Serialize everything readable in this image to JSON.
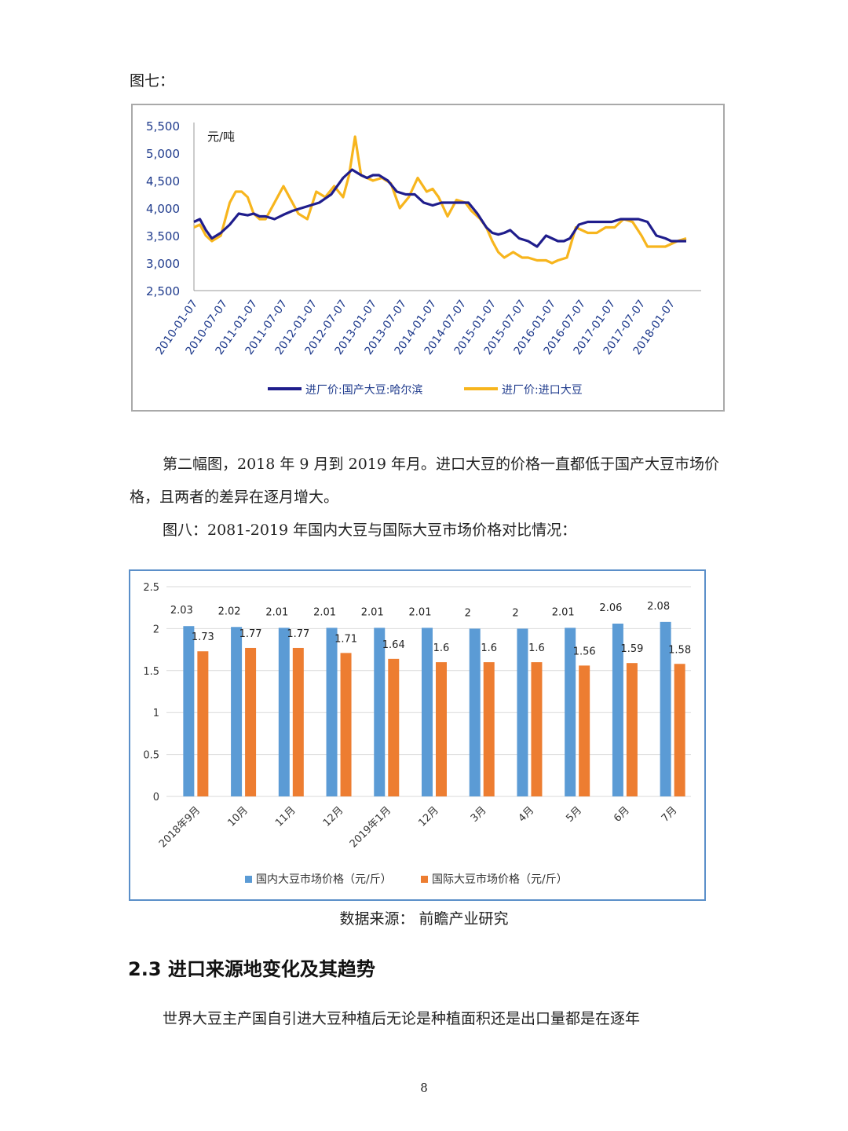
{
  "doc": {
    "fig7_label": "图七：",
    "paragraph1": "第二幅图，2018 年 9 月到 2019 年月。进口大豆的价格一直都低于国产大豆市场价格，且两者的差异在逐月增大。",
    "fig8_caption": "图八：2081-2019 年国内大豆与国际大豆市场价格对比情况：",
    "source": "数据来源：  前瞻产业研究",
    "section_heading": "2.3  进口来源地变化及其趋势",
    "paragraph3": "世界大豆主产国自引进大豆种植后无论是种植面积还是出口量都是在逐年",
    "page_number": "8"
  },
  "chart_data": [
    {
      "type": "line",
      "unit_label": "元/吨",
      "ylim": [
        2500,
        5500
      ],
      "y_ticks": [
        "5,500",
        "5,000",
        "4,500",
        "4,000",
        "3,500",
        "3,000",
        "2,500"
      ],
      "x_ticks": [
        "2010-01-07",
        "2010-07-07",
        "2011-01-07",
        "2011-07-07",
        "2012-01-07",
        "2012-07-07",
        "2013-01-07",
        "2013-07-07",
        "2014-01-07",
        "2014-07-07",
        "2015-01-07",
        "2015-07-07",
        "2016-01-07",
        "2016-07-07",
        "2017-01-07",
        "2017-07-07",
        "2018-01-07"
      ],
      "grid": false,
      "legend_position": "bottom",
      "colors": {
        "domestic": "#1f1d8c",
        "imported": "#f7b51d"
      },
      "series": [
        {
          "name": "进厂价:国产大豆:哈尔滨",
          "x": [
            2010.0,
            2010.1,
            2010.2,
            2010.3,
            2010.45,
            2010.6,
            2010.75,
            2010.9,
            2011.0,
            2011.1,
            2011.2,
            2011.35,
            2011.5,
            2011.65,
            2011.8,
            2011.95,
            2012.1,
            2012.3,
            2012.5,
            2012.65,
            2012.8,
            2012.9,
            2013.0,
            2013.1,
            2013.25,
            2013.4,
            2013.55,
            2013.7,
            2013.85,
            2014.0,
            2014.15,
            2014.3,
            2014.45,
            2014.6,
            2014.75,
            2014.9,
            2015.0,
            2015.1,
            2015.2,
            2015.3,
            2015.45,
            2015.6,
            2015.75,
            2015.9,
            2016.0,
            2016.1,
            2016.2,
            2016.3,
            2016.45,
            2016.6,
            2016.75,
            2016.9,
            2017.0,
            2017.15,
            2017.3,
            2017.45,
            2017.6,
            2017.75,
            2017.9,
            2018.0,
            2018.1,
            2018.25
          ],
          "values": [
            3750,
            3800,
            3600,
            3450,
            3550,
            3700,
            3900,
            3870,
            3900,
            3850,
            3850,
            3800,
            3880,
            3950,
            4000,
            4050,
            4100,
            4250,
            4550,
            4700,
            4600,
            4550,
            4600,
            4600,
            4500,
            4300,
            4250,
            4250,
            4100,
            4050,
            4100,
            4100,
            4100,
            4100,
            3900,
            3650,
            3550,
            3520,
            3550,
            3600,
            3450,
            3400,
            3300,
            3500,
            3450,
            3400,
            3400,
            3450,
            3700,
            3750,
            3750,
            3750,
            3750,
            3800,
            3800,
            3800,
            3750,
            3500,
            3450,
            3400,
            3400,
            3400
          ]
        },
        {
          "name": "进厂价:进口大豆",
          "x": [
            2010.0,
            2010.1,
            2010.2,
            2010.3,
            2010.45,
            2010.6,
            2010.7,
            2010.8,
            2010.9,
            2011.0,
            2011.1,
            2011.2,
            2011.35,
            2011.5,
            2011.6,
            2011.75,
            2011.9,
            2012.05,
            2012.2,
            2012.35,
            2012.5,
            2012.6,
            2012.65,
            2012.7,
            2012.8,
            2012.9,
            2013.0,
            2013.15,
            2013.3,
            2013.45,
            2013.6,
            2013.75,
            2013.9,
            2014.0,
            2014.1,
            2014.25,
            2014.4,
            2014.55,
            2014.65,
            2014.8,
            2014.9,
            2015.0,
            2015.1,
            2015.2,
            2015.35,
            2015.5,
            2015.6,
            2015.75,
            2015.9,
            2016.0,
            2016.1,
            2016.25,
            2016.4,
            2016.5,
            2016.6,
            2016.75,
            2016.9,
            2017.05,
            2017.2,
            2017.35,
            2017.5,
            2017.6,
            2017.75,
            2017.9,
            2018.0,
            2018.1,
            2018.25
          ],
          "values": [
            3650,
            3700,
            3500,
            3400,
            3500,
            4100,
            4300,
            4300,
            4200,
            3900,
            3800,
            3800,
            4100,
            4400,
            4200,
            3900,
            3800,
            4300,
            4200,
            4400,
            4200,
            4600,
            4950,
            5300,
            4600,
            4550,
            4500,
            4550,
            4450,
            4000,
            4200,
            4550,
            4300,
            4350,
            4200,
            3850,
            4150,
            4100,
            3950,
            3800,
            3650,
            3400,
            3200,
            3100,
            3200,
            3100,
            3100,
            3050,
            3050,
            3000,
            3050,
            3100,
            3650,
            3600,
            3550,
            3550,
            3650,
            3650,
            3800,
            3750,
            3500,
            3300,
            3300,
            3300,
            3350,
            3400,
            3450
          ]
        }
      ]
    },
    {
      "type": "bar",
      "categories": [
        "2018年9月",
        "10月",
        "11月",
        "12月",
        "2019年1月",
        "12月",
        "3月",
        "4月",
        "5月",
        "6月",
        "7月"
      ],
      "ylim": [
        0,
        2.5
      ],
      "y_ticks": [
        "2.5",
        "2",
        "1.5",
        "1",
        "0.5",
        "0"
      ],
      "grid": true,
      "legend_position": "bottom",
      "colors": {
        "domestic": "#5b9bd5",
        "international": "#ed7d31"
      },
      "series": [
        {
          "name": "国内大豆市场价格（元/斤）",
          "values": [
            2.03,
            2.02,
            2.01,
            2.01,
            2.01,
            2.01,
            2,
            2,
            2.01,
            2.06,
            2.08
          ]
        },
        {
          "name": "国际大豆市场价格（元/斤）",
          "values": [
            1.73,
            1.77,
            1.77,
            1.71,
            1.64,
            1.6,
            1.6,
            1.6,
            1.56,
            1.59,
            1.58
          ]
        }
      ]
    }
  ]
}
